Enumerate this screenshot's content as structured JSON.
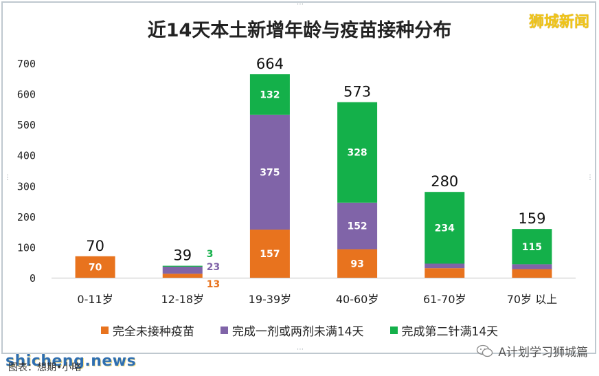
{
  "page": {
    "brand": "狮城新闻",
    "watermark": "shicheng.news",
    "source": "图表：想期•小略",
    "account": "A计划学习狮城篇"
  },
  "colors": {
    "unvaccinated": "#e8731e",
    "partial": "#8064a8",
    "full": "#14b04a",
    "axis": "#bfbfbf"
  },
  "chart_data": {
    "type": "bar",
    "stacked": true,
    "title": "近14天本土新增年龄与疫苗接种分布",
    "categories": [
      "0-11岁",
      "12-18岁",
      "19-39岁",
      "40-60岁",
      "61-70岁",
      "70岁 以上"
    ],
    "series": [
      {
        "name": "完全未接种疫苗",
        "values": [
          70,
          13,
          157,
          93,
          31,
          28
        ]
      },
      {
        "name": "完成一剂或两剂未满14天",
        "values": [
          0,
          23,
          375,
          152,
          15,
          16
        ]
      },
      {
        "name": "完成第二针满14天",
        "values": [
          0,
          3,
          132,
          328,
          234,
          115
        ]
      }
    ],
    "totals": [
      70,
      39,
      664,
      573,
      280,
      159
    ],
    "ylim": [
      0,
      700
    ],
    "yticks": [
      "0",
      "100",
      "200",
      "300",
      "400",
      "500",
      "600",
      "700"
    ],
    "grid": false,
    "legend": "bottom"
  }
}
